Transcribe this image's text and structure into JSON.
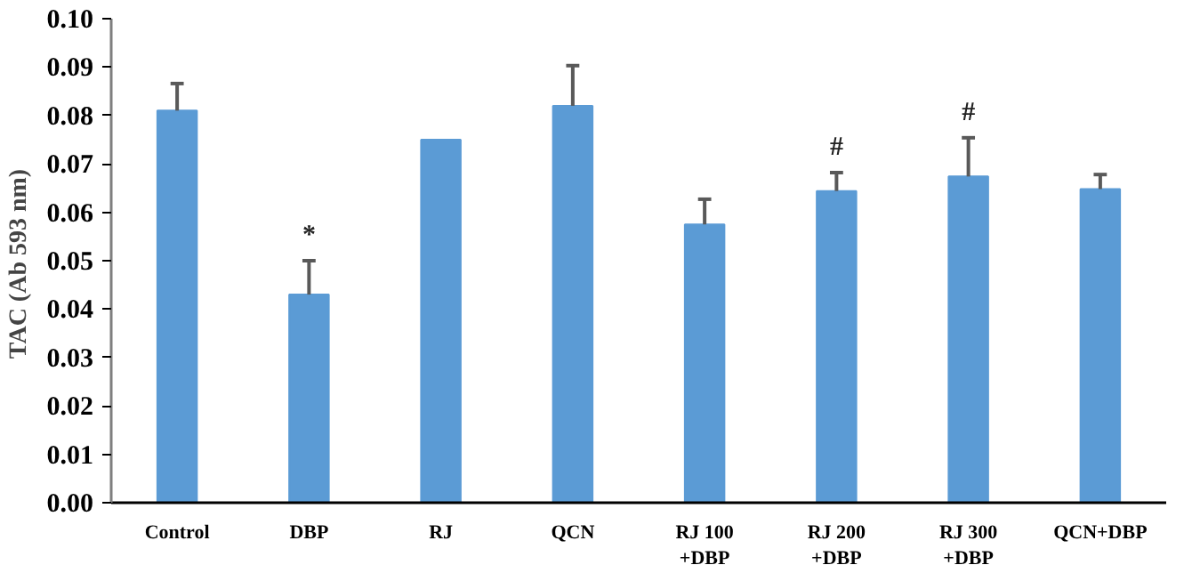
{
  "chart_data": {
    "type": "bar",
    "ylabel": "TAC (Ab  593 nm)",
    "categories": [
      "Control",
      "DBP",
      "RJ",
      "QCN",
      "RJ 100\n+DBP",
      "RJ 200\n+DBP",
      "RJ 300\n+DBP",
      "QCN+DBP"
    ],
    "values": [
      0.081,
      0.043,
      0.075,
      0.082,
      0.0575,
      0.0644,
      0.0674,
      0.0648
    ],
    "errors": [
      [
        0.081,
        0.0866
      ],
      [
        0.043,
        0.05
      ],
      null,
      [
        0.082,
        0.0903
      ],
      [
        0.0575,
        0.0627
      ],
      [
        0.0644,
        0.0682
      ],
      [
        0.0674,
        0.0754
      ],
      [
        0.0648,
        0.0678
      ]
    ],
    "color": "#5b9bd5",
    "ylim": [
      0,
      0.1
    ],
    "yticks": [
      {
        "value": 0,
        "label": "0.00"
      },
      0.01,
      0.02,
      0.03,
      0.04,
      0.05,
      0.06,
      0.07,
      0.08,
      0.09,
      {
        "value": 0.1,
        "label": "0.10"
      }
    ],
    "value_labels": [
      null,
      "*",
      null,
      null,
      null,
      "#",
      "#",
      null
    ],
    "grid": false
  }
}
